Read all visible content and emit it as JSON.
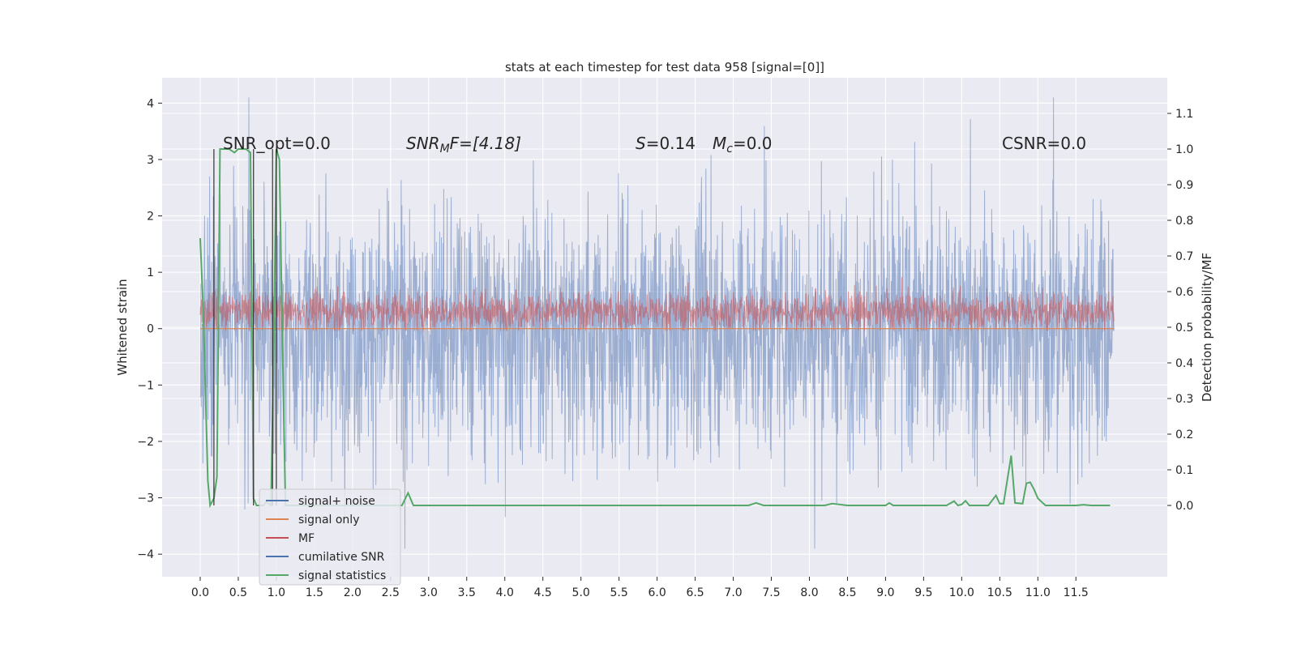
{
  "chart_data": {
    "type": "line",
    "title": "stats at each timestep for test data 958 [signal=[0]]",
    "xlabel": "",
    "ylabel": "Whitened strain",
    "ylabel_right": "Detection probability/MF",
    "xlim": [
      -0.5,
      12.7
    ],
    "ylim": [
      -4.4,
      4.45
    ],
    "ylim_right": [
      -0.2,
      1.2
    ],
    "x_ticks": [
      "0.0",
      "0.5",
      "1.0",
      "1.5",
      "2.0",
      "2.5",
      "3.0",
      "3.5",
      "4.0",
      "4.5",
      "5.0",
      "5.5",
      "6.0",
      "6.5",
      "7.0",
      "7.5",
      "8.0",
      "8.5",
      "9.0",
      "9.5",
      "10.0",
      "10.5",
      "11.0",
      "11.5"
    ],
    "y_ticks": [
      "4",
      "3",
      "2",
      "1",
      "0",
      "−1",
      "−2",
      "−3",
      "−4"
    ],
    "y_ticks_right": [
      "1.1",
      "1.0",
      "0.9",
      "0.8",
      "0.7",
      "0.6",
      "0.5",
      "0.4",
      "0.3",
      "0.2",
      "0.1",
      "0.0"
    ],
    "grid": true,
    "legend_position": "lower-left",
    "annotations": {
      "snr_opt": "SNR_opt=0.0",
      "snr_mf_base": "SNR",
      "snr_mf_sub": "M",
      "snr_mf_tail": "F=[4.18]",
      "s_var": "S",
      "s_value": "=0.14",
      "mc_var": "M",
      "mc_sub": "c",
      "mc_value": "=0.0",
      "csnr": "CSNR=0.0"
    },
    "series": [
      {
        "name": "signal+ noise",
        "color": "#4c72b0",
        "kind": "noise_band",
        "x_range": [
          0.0,
          12.0
        ],
        "mean": 0.0,
        "typical_range": [
          -1.8,
          1.8
        ],
        "extreme_range": [
          -3.9,
          4.1
        ]
      },
      {
        "name": "signal only",
        "color": "#dd8452",
        "kind": "flat",
        "x_range": [
          0.0,
          12.0
        ],
        "value": 0.0
      },
      {
        "name": "MF",
        "color": "#c44e52",
        "kind": "noise_band",
        "axis": "right",
        "x_range": [
          0.0,
          12.0
        ],
        "typical_range": [
          0.5,
          0.6
        ],
        "extreme_range": [
          0.49,
          0.65
        ]
      },
      {
        "name": "cumilative SNR",
        "color": "#4c72b0",
        "kind": "line",
        "axis": "right"
      },
      {
        "name": "signal statistics",
        "color": "#55a868",
        "kind": "line",
        "axis": "right",
        "x": [
          0.0,
          0.04,
          0.1,
          0.13,
          0.18,
          0.22,
          0.26,
          0.3,
          0.38,
          0.45,
          0.5,
          0.55,
          0.6,
          0.66,
          0.7,
          0.74,
          0.8,
          0.83,
          0.87,
          0.93,
          0.97,
          1.0,
          1.04,
          1.08,
          1.12,
          1.2,
          1.3,
          1.5,
          2.0,
          2.5,
          2.65,
          2.73,
          2.8,
          3.0,
          4.0,
          5.0,
          6.0,
          7.0,
          7.2,
          7.3,
          7.4,
          7.6,
          8.0,
          8.2,
          8.3,
          8.5,
          9.0,
          9.05,
          9.1,
          9.2,
          9.5,
          9.8,
          9.9,
          9.95,
          10.0,
          10.05,
          10.1,
          10.2,
          10.35,
          10.45,
          10.5,
          10.55,
          10.65,
          10.7,
          10.8,
          10.85,
          10.9,
          10.95,
          11.0,
          11.1,
          11.3,
          11.5,
          11.6,
          11.7,
          11.9,
          11.95
        ],
        "y": [
          0.75,
          0.55,
          0.07,
          0.0,
          0.02,
          0.08,
          1.0,
          1.0,
          1.0,
          0.99,
          1.0,
          1.0,
          1.0,
          0.99,
          0.02,
          0.0,
          0.0,
          0.0,
          0.01,
          0.0,
          0.5,
          1.0,
          0.97,
          0.45,
          0.0,
          0.0,
          0.0,
          0.0,
          0.0,
          0.0,
          0.0,
          0.035,
          0.0,
          0.0,
          0.0,
          0.0,
          0.0,
          0.0,
          0.0,
          0.007,
          0.0,
          0.0,
          0.0,
          0.0,
          0.005,
          0.0,
          0.0,
          0.007,
          0.0,
          0.0,
          0.0,
          0.0,
          0.012,
          0.0,
          0.003,
          0.013,
          0.0,
          0.0,
          0.0,
          0.028,
          0.005,
          0.005,
          0.14,
          0.007,
          0.005,
          0.062,
          0.065,
          0.045,
          0.02,
          0.0,
          0.0,
          0.0,
          0.002,
          0.0,
          0.0,
          0.0
        ]
      }
    ]
  }
}
